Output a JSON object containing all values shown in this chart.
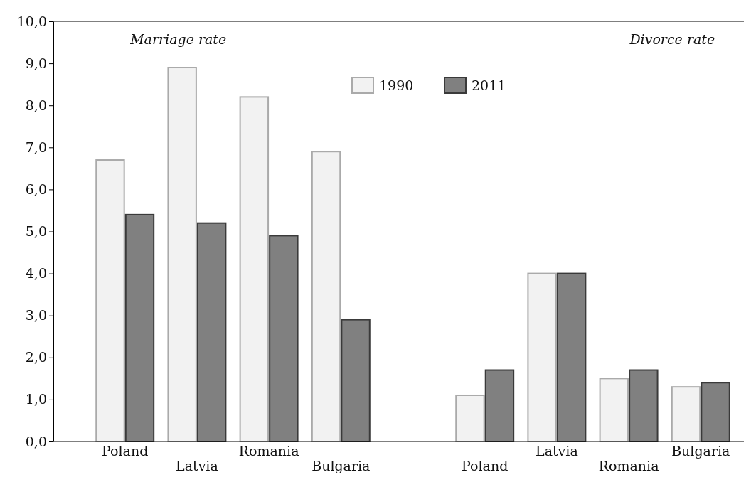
{
  "chart_data": {
    "type": "bar",
    "categories": [
      "Poland",
      "Latvia",
      "Romania",
      "Bulgaria",
      null,
      "Poland",
      "Latvia",
      "Romania",
      "Bulgaria"
    ],
    "series": [
      {
        "name": "1990",
        "color": "#f2f2f2",
        "values": [
          6.7,
          8.9,
          8.2,
          6.9,
          null,
          1.1,
          4.0,
          1.5,
          1.3
        ]
      },
      {
        "name": "2011",
        "color": "#808080",
        "values": [
          5.4,
          5.2,
          4.9,
          2.9,
          null,
          1.7,
          4.0,
          1.7,
          1.4
        ]
      }
    ],
    "ylim": [
      0,
      10
    ],
    "yticks": [
      {
        "value": 0,
        "label": "0,0"
      },
      {
        "value": 1,
        "label": "1,0"
      },
      {
        "value": 2,
        "label": "2,0"
      },
      {
        "value": 3,
        "label": "3,0"
      },
      {
        "value": 4,
        "label": "4,0"
      },
      {
        "value": 5,
        "label": "5,0"
      },
      {
        "value": 6,
        "label": "6,0"
      },
      {
        "value": 7,
        "label": "7,0"
      },
      {
        "value": 8,
        "label": "8,0"
      },
      {
        "value": 9,
        "label": "9,0"
      },
      {
        "value": 10,
        "label": "10,0"
      }
    ],
    "annotations": [
      "Marriage rate",
      "Divorce rate"
    ],
    "legend": "top",
    "grid": false
  }
}
